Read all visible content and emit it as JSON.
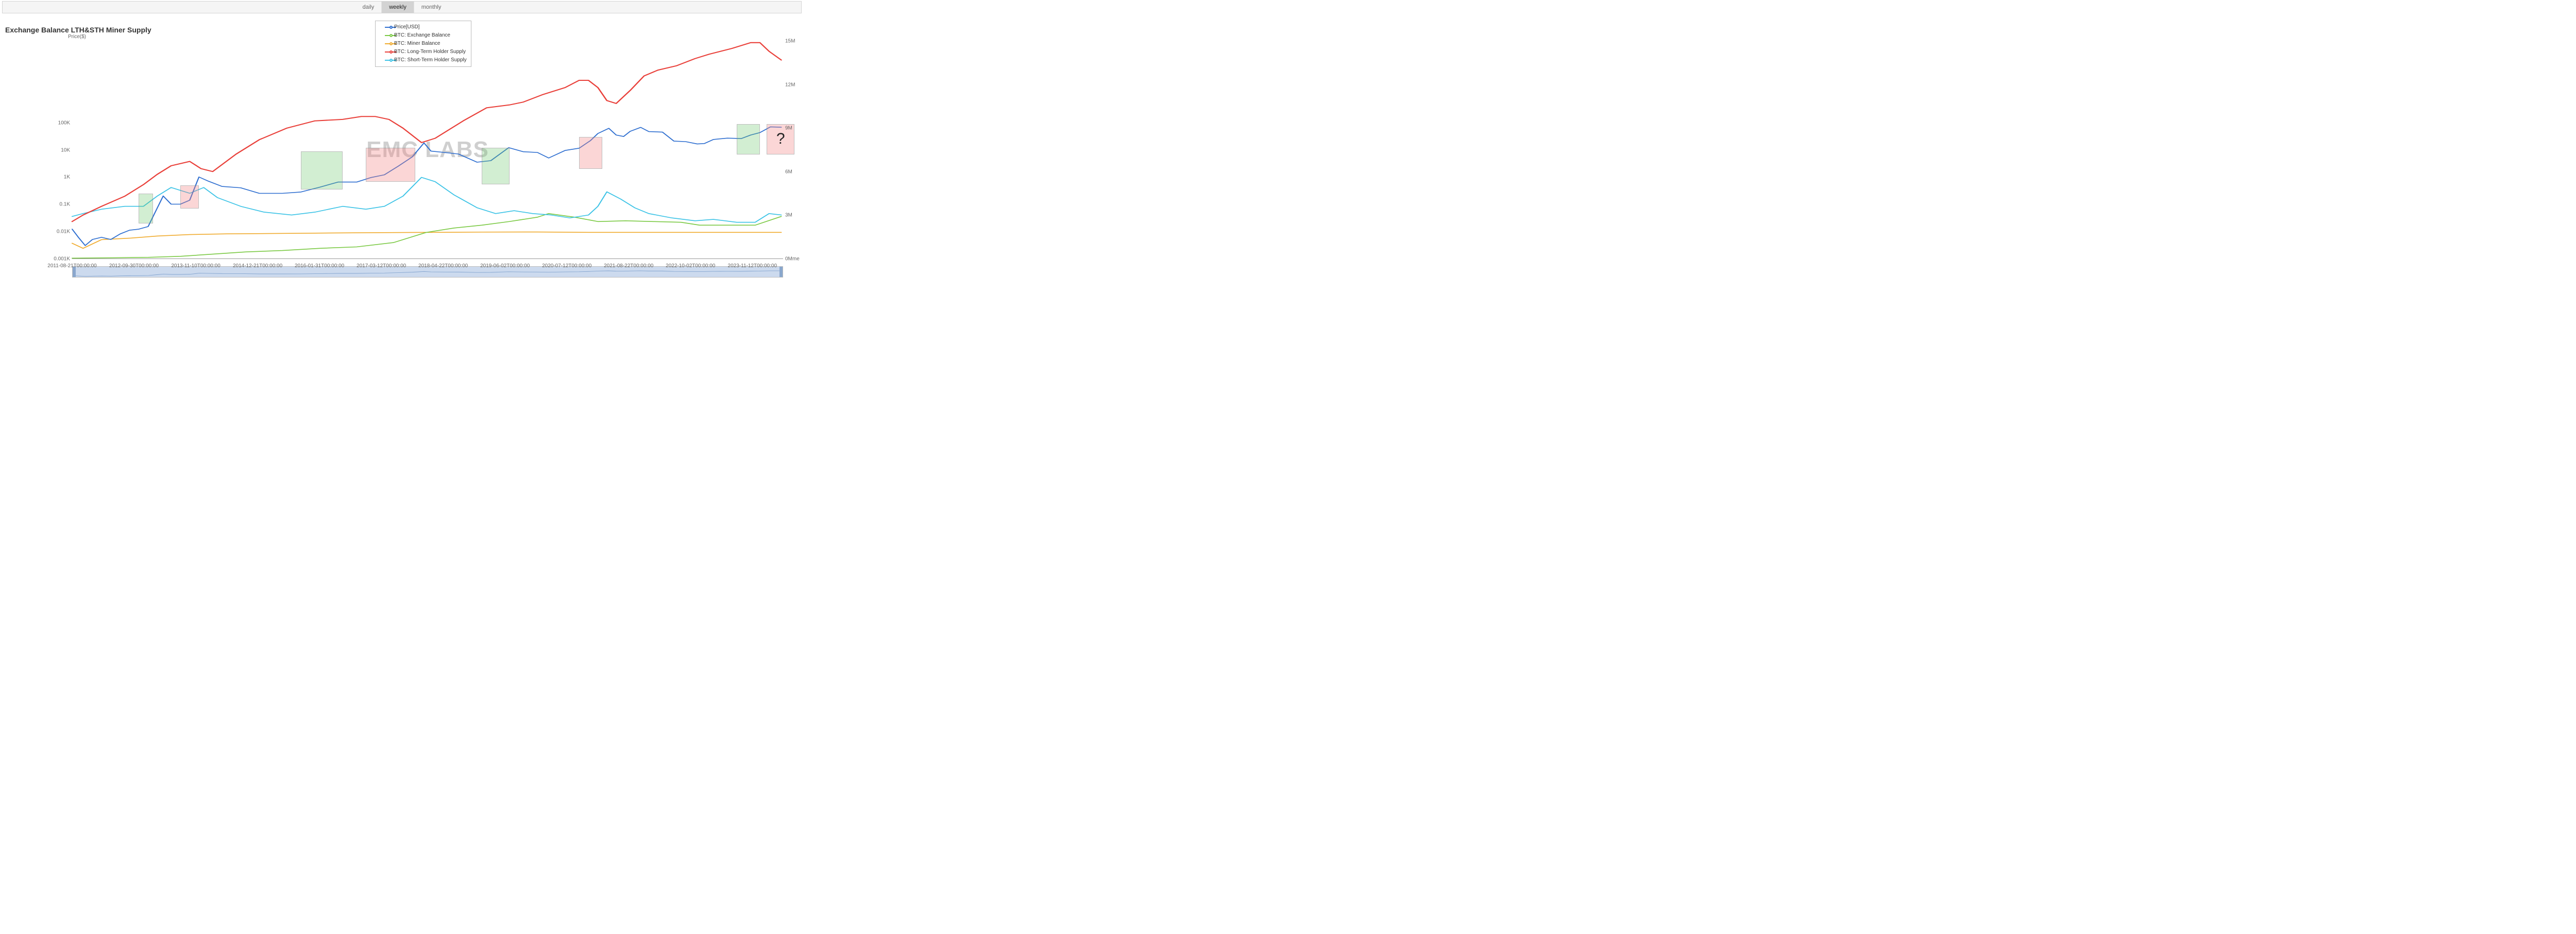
{
  "timeframe_tabs": {
    "items": [
      "daily",
      "weekly",
      "monthly"
    ],
    "active_index": 1
  },
  "chart": {
    "title": "Exchange Balance LTH&STH Miner Supply",
    "watermark": "EMC LABS",
    "type": "multi-axis-line",
    "x_axis": {
      "type": "time",
      "min": "2011-08-21T00:00:00",
      "max": "2024-06-01T00:00:00",
      "ticks": [
        "2011-08-21T00:00:00",
        "2012-09-30T00:00:00",
        "2013-11-10T00:00:00",
        "2014-12-21T00:00:00",
        "2016-01-31T00:00:00",
        "2017-03-12T00:00:00",
        "2018-04-22T00:00:00",
        "2019-06-02T00:00:00",
        "2020-07-12T00:00:00",
        "2021-08-22T00:00:00",
        "2022-10-02T00:00:00",
        "2023-11-12T00:00:00"
      ]
    },
    "y_axis_left": {
      "label": "Price($)",
      "scale": "log",
      "min": 0.001,
      "max": 100000,
      "ticks": [
        {
          "v": 0.001,
          "label": "0.001K"
        },
        {
          "v": 0.01,
          "label": "0.01K"
        },
        {
          "v": 0.1,
          "label": "0.1K"
        },
        {
          "v": 1,
          "label": "1K"
        },
        {
          "v": 10,
          "label": "10K"
        },
        {
          "v": 100,
          "label": "100K"
        }
      ]
    },
    "y_axis_right": {
      "label": "0Mme",
      "scale": "linear",
      "min": 0,
      "max": 15,
      "ticks": [
        {
          "v": 0,
          "label": "0Mme"
        },
        {
          "v": 3,
          "label": "3M"
        },
        {
          "v": 6,
          "label": "6M"
        },
        {
          "v": 9,
          "label": "9M"
        },
        {
          "v": 12,
          "label": "12M"
        },
        {
          "v": 15,
          "label": "15M"
        }
      ]
    },
    "legend": {
      "position": "top-center",
      "items": [
        {
          "key": "price",
          "label": "Price[USD]",
          "color": "#2f6fd0",
          "marker": "circle"
        },
        {
          "key": "exch",
          "label": "BTC: Exchange Balance",
          "color": "#7ac943",
          "marker": "circle"
        },
        {
          "key": "miner",
          "label": "BTC: Miner Balance",
          "color": "#f0ab2e",
          "marker": "circle"
        },
        {
          "key": "lth",
          "label": "BTC: Long-Term Holder Supply",
          "color": "#e9403a",
          "marker": "circle"
        },
        {
          "key": "sth",
          "label": "BTC: Short-Term Holder Supply",
          "color": "#3cc3e6",
          "marker": "circle"
        }
      ]
    },
    "highlight_boxes": [
      {
        "color": "green",
        "x0": "2012-11-01",
        "x1": "2013-02-01",
        "y0_log": 0.02,
        "y1_log": 0.25
      },
      {
        "color": "red",
        "x0": "2013-08-01",
        "x1": "2013-12-01",
        "y0_log": 0.07,
        "y1_log": 0.5
      },
      {
        "color": "green",
        "x0": "2015-10-01",
        "x1": "2016-07-01",
        "y0_log": 0.35,
        "y1_log": 9
      },
      {
        "color": "red",
        "x0": "2016-12-01",
        "x1": "2017-10-20",
        "y0_log": 0.7,
        "y1_log": 12
      },
      {
        "color": "green",
        "x0": "2019-01-01",
        "x1": "2019-07-01",
        "y0_log": 0.55,
        "y1_log": 12
      },
      {
        "color": "red",
        "x0": "2020-10-01",
        "x1": "2021-03-01",
        "y0_log": 2.0,
        "y1_log": 30
      },
      {
        "color": "green",
        "x0": "2023-08-01",
        "x1": "2024-01-01",
        "y0_log": 7,
        "y1_log": 90
      },
      {
        "color": "red",
        "x0": "2024-02-15",
        "x1": "2024-08-15",
        "y0_log": 7,
        "y1_log": 90,
        "label": "?"
      }
    ],
    "series": {
      "price": {
        "axis": "left",
        "color": "#2f6fd0",
        "points": [
          [
            "2011-08-21",
            0.012
          ],
          [
            "2011-10-01",
            0.006
          ],
          [
            "2011-11-15",
            0.003
          ],
          [
            "2012-01-01",
            0.005
          ],
          [
            "2012-03-01",
            0.006
          ],
          [
            "2012-05-01",
            0.005
          ],
          [
            "2012-07-01",
            0.008
          ],
          [
            "2012-09-01",
            0.011
          ],
          [
            "2012-11-01",
            0.012
          ],
          [
            "2013-01-01",
            0.015
          ],
          [
            "2013-03-01",
            0.07
          ],
          [
            "2013-04-10",
            0.2
          ],
          [
            "2013-06-01",
            0.1
          ],
          [
            "2013-08-01",
            0.1
          ],
          [
            "2013-10-01",
            0.14
          ],
          [
            "2013-12-01",
            1.0
          ],
          [
            "2014-02-01",
            0.7
          ],
          [
            "2014-05-01",
            0.45
          ],
          [
            "2014-09-01",
            0.4
          ],
          [
            "2015-01-01",
            0.25
          ],
          [
            "2015-06-01",
            0.25
          ],
          [
            "2015-10-01",
            0.28
          ],
          [
            "2016-02-01",
            0.42
          ],
          [
            "2016-06-01",
            0.65
          ],
          [
            "2016-10-01",
            0.65
          ],
          [
            "2017-01-01",
            0.95
          ],
          [
            "2017-04-01",
            1.2
          ],
          [
            "2017-07-01",
            2.5
          ],
          [
            "2017-10-01",
            5.5
          ],
          [
            "2017-12-17",
            18.0
          ],
          [
            "2018-02-01",
            9.0
          ],
          [
            "2018-05-01",
            8.0
          ],
          [
            "2018-08-01",
            7.0
          ],
          [
            "2018-12-01",
            3.5
          ],
          [
            "2019-03-01",
            4.0
          ],
          [
            "2019-06-26",
            12.0
          ],
          [
            "2019-10-01",
            8.5
          ],
          [
            "2020-01-01",
            8.0
          ],
          [
            "2020-03-15",
            5.0
          ],
          [
            "2020-07-01",
            9.5
          ],
          [
            "2020-10-01",
            11.5
          ],
          [
            "2020-12-15",
            22.0
          ],
          [
            "2021-02-01",
            40.0
          ],
          [
            "2021-04-14",
            62.0
          ],
          [
            "2021-06-01",
            35.0
          ],
          [
            "2021-07-20",
            31.0
          ],
          [
            "2021-09-01",
            48.0
          ],
          [
            "2021-11-09",
            67.0
          ],
          [
            "2022-01-01",
            47.0
          ],
          [
            "2022-04-01",
            45.0
          ],
          [
            "2022-06-15",
            21.0
          ],
          [
            "2022-09-01",
            20.0
          ],
          [
            "2022-11-15",
            16.5
          ],
          [
            "2023-01-01",
            17.0
          ],
          [
            "2023-03-01",
            24.0
          ],
          [
            "2023-06-01",
            27.0
          ],
          [
            "2023-09-01",
            26.0
          ],
          [
            "2023-11-01",
            35.0
          ],
          [
            "2024-01-01",
            43.0
          ],
          [
            "2024-03-10",
            70.0
          ],
          [
            "2024-05-20",
            68.0
          ]
        ]
      },
      "exch": {
        "axis": "right",
        "color": "#7ac943",
        "points": [
          [
            "2011-08-21",
            0.02
          ],
          [
            "2012-06-01",
            0.05
          ],
          [
            "2013-01-01",
            0.08
          ],
          [
            "2013-08-01",
            0.15
          ],
          [
            "2014-03-01",
            0.3
          ],
          [
            "2014-10-01",
            0.45
          ],
          [
            "2015-06-01",
            0.55
          ],
          [
            "2016-02-01",
            0.7
          ],
          [
            "2016-10-01",
            0.8
          ],
          [
            "2017-06-01",
            1.1
          ],
          [
            "2018-01-01",
            1.8
          ],
          [
            "2018-07-01",
            2.1
          ],
          [
            "2019-01-01",
            2.3
          ],
          [
            "2019-07-01",
            2.55
          ],
          [
            "2020-01-01",
            2.85
          ],
          [
            "2020-03-15",
            3.1
          ],
          [
            "2020-09-01",
            2.85
          ],
          [
            "2021-02-01",
            2.55
          ],
          [
            "2021-08-01",
            2.6
          ],
          [
            "2022-02-01",
            2.55
          ],
          [
            "2022-08-01",
            2.5
          ],
          [
            "2022-12-01",
            2.3
          ],
          [
            "2023-06-01",
            2.3
          ],
          [
            "2023-12-01",
            2.3
          ],
          [
            "2024-05-20",
            2.9
          ]
        ]
      },
      "miner": {
        "axis": "right",
        "color": "#f0ab2e",
        "points": [
          [
            "2011-08-21",
            1.05
          ],
          [
            "2011-11-01",
            0.7
          ],
          [
            "2012-03-01",
            1.3
          ],
          [
            "2012-09-01",
            1.4
          ],
          [
            "2013-03-01",
            1.55
          ],
          [
            "2013-10-01",
            1.65
          ],
          [
            "2014-06-01",
            1.7
          ],
          [
            "2015-03-01",
            1.72
          ],
          [
            "2016-01-01",
            1.75
          ],
          [
            "2017-01-01",
            1.78
          ],
          [
            "2018-01-01",
            1.8
          ],
          [
            "2019-01-01",
            1.82
          ],
          [
            "2020-01-01",
            1.83
          ],
          [
            "2021-01-01",
            1.8
          ],
          [
            "2022-01-01",
            1.8
          ],
          [
            "2023-01-01",
            1.8
          ],
          [
            "2024-05-20",
            1.8
          ]
        ]
      },
      "lth": {
        "axis": "right",
        "color": "#e9403a",
        "points": [
          [
            "2011-08-21",
            2.55
          ],
          [
            "2011-11-01",
            3.0
          ],
          [
            "2012-03-01",
            3.6
          ],
          [
            "2012-08-01",
            4.3
          ],
          [
            "2012-12-01",
            5.1
          ],
          [
            "2013-03-01",
            5.8
          ],
          [
            "2013-06-01",
            6.4
          ],
          [
            "2013-10-01",
            6.7
          ],
          [
            "2013-12-15",
            6.2
          ],
          [
            "2014-03-01",
            6.0
          ],
          [
            "2014-08-01",
            7.2
          ],
          [
            "2015-01-01",
            8.2
          ],
          [
            "2015-07-01",
            9.0
          ],
          [
            "2016-01-01",
            9.5
          ],
          [
            "2016-07-01",
            9.6
          ],
          [
            "2016-11-01",
            9.8
          ],
          [
            "2017-02-01",
            9.8
          ],
          [
            "2017-05-01",
            9.6
          ],
          [
            "2017-08-01",
            9.0
          ],
          [
            "2017-12-01",
            8.0
          ],
          [
            "2018-03-01",
            8.3
          ],
          [
            "2018-09-01",
            9.5
          ],
          [
            "2019-02-01",
            10.4
          ],
          [
            "2019-07-01",
            10.6
          ],
          [
            "2019-10-01",
            10.8
          ],
          [
            "2020-02-01",
            11.3
          ],
          [
            "2020-07-01",
            11.8
          ],
          [
            "2020-10-01",
            12.3
          ],
          [
            "2020-12-01",
            12.3
          ],
          [
            "2021-02-01",
            11.8
          ],
          [
            "2021-04-01",
            10.9
          ],
          [
            "2021-06-01",
            10.7
          ],
          [
            "2021-09-01",
            11.6
          ],
          [
            "2021-12-01",
            12.6
          ],
          [
            "2022-03-01",
            13.0
          ],
          [
            "2022-07-01",
            13.3
          ],
          [
            "2022-11-01",
            13.8
          ],
          [
            "2023-02-01",
            14.1
          ],
          [
            "2023-07-01",
            14.5
          ],
          [
            "2023-11-01",
            14.9
          ],
          [
            "2024-01-01",
            14.9
          ],
          [
            "2024-03-01",
            14.3
          ],
          [
            "2024-05-20",
            13.7
          ]
        ]
      },
      "sth": {
        "axis": "right",
        "color": "#3cc3e6",
        "points": [
          [
            "2011-08-21",
            2.9
          ],
          [
            "2011-11-01",
            3.1
          ],
          [
            "2012-03-01",
            3.4
          ],
          [
            "2012-08-01",
            3.6
          ],
          [
            "2012-12-01",
            3.6
          ],
          [
            "2013-03-01",
            4.3
          ],
          [
            "2013-06-01",
            4.9
          ],
          [
            "2013-10-01",
            4.5
          ],
          [
            "2014-01-01",
            4.9
          ],
          [
            "2014-04-01",
            4.2
          ],
          [
            "2014-09-01",
            3.6
          ],
          [
            "2015-02-01",
            3.2
          ],
          [
            "2015-08-01",
            3.0
          ],
          [
            "2016-01-01",
            3.2
          ],
          [
            "2016-07-01",
            3.6
          ],
          [
            "2016-12-01",
            3.4
          ],
          [
            "2017-04-01",
            3.6
          ],
          [
            "2017-08-01",
            4.3
          ],
          [
            "2017-12-01",
            5.6
          ],
          [
            "2018-03-01",
            5.3
          ],
          [
            "2018-07-01",
            4.4
          ],
          [
            "2018-12-01",
            3.5
          ],
          [
            "2019-04-01",
            3.1
          ],
          [
            "2019-08-01",
            3.3
          ],
          [
            "2019-12-01",
            3.1
          ],
          [
            "2020-04-01",
            3.0
          ],
          [
            "2020-08-01",
            2.8
          ],
          [
            "2020-12-01",
            3.0
          ],
          [
            "2021-02-01",
            3.6
          ],
          [
            "2021-04-01",
            4.6
          ],
          [
            "2021-07-01",
            4.1
          ],
          [
            "2021-10-01",
            3.5
          ],
          [
            "2022-01-01",
            3.1
          ],
          [
            "2022-06-01",
            2.8
          ],
          [
            "2022-11-01",
            2.6
          ],
          [
            "2023-03-01",
            2.7
          ],
          [
            "2023-08-01",
            2.5
          ],
          [
            "2023-12-01",
            2.5
          ],
          [
            "2024-03-01",
            3.1
          ],
          [
            "2024-05-20",
            3.0
          ]
        ]
      }
    },
    "brush": {
      "extent": [
        "2011-08-21",
        "2024-06-01"
      ]
    },
    "styling": {
      "background_color": "#ffffff",
      "axis_color": "#999999",
      "tick_font_size": 10,
      "title_font_size": 14,
      "watermark_color": "#cfcfcf",
      "watermark_font_size": 44,
      "highlight_green": "rgba(108,199,108,0.55)",
      "highlight_red": "rgba(244,132,132,0.60)",
      "highlight_border": "#888888"
    }
  }
}
